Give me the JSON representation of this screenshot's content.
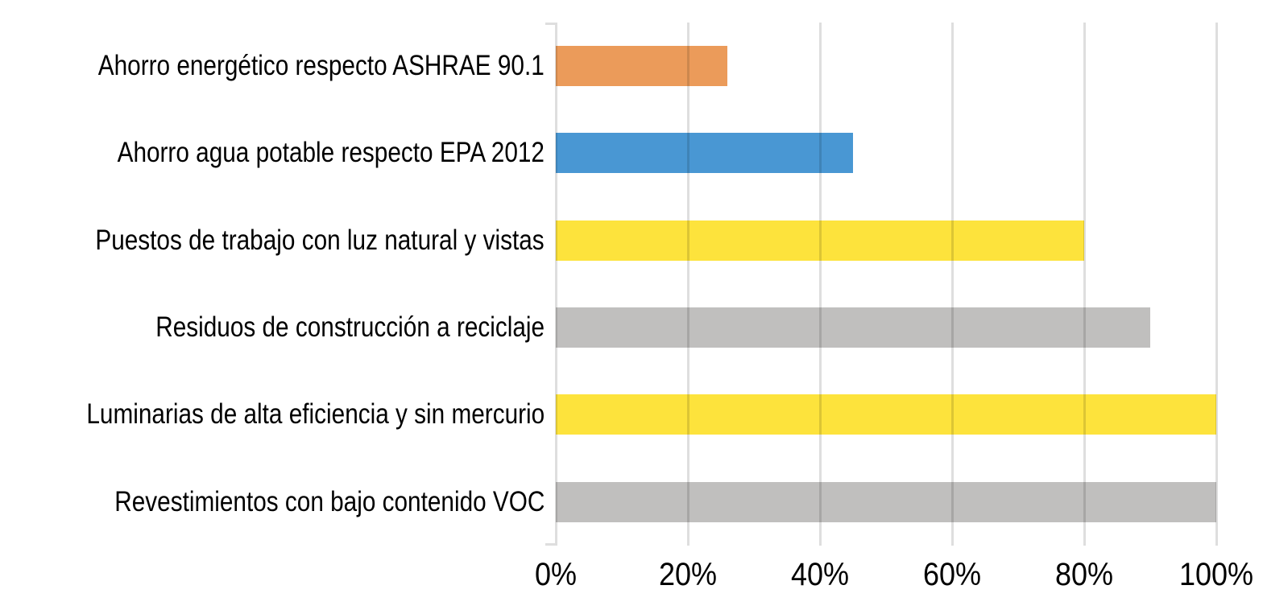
{
  "chart_data": {
    "type": "bar",
    "orientation": "horizontal",
    "title": "",
    "categories": [
      "Ahorro energético respecto ASHRAE 90.1",
      "Ahorro agua potable respecto EPA 2012",
      "Puestos de trabajo con luz natural y vistas",
      "Residuos de construcción a reciclaje",
      "Luminarias de alta eficiencia y sin mercurio",
      "Revestimientos con bajo contenido VOC"
    ],
    "values": [
      26,
      45,
      80,
      90,
      100,
      100
    ],
    "value_unit": "%",
    "bar_colors": [
      "#EB9B5A",
      "#4997D3",
      "#FDE33C",
      "#C0BFBE",
      "#FDE33C",
      "#C0BFBE"
    ],
    "xlabel": "",
    "ylabel": "",
    "xlim": [
      0,
      100
    ],
    "x_tick_values": [
      0,
      20,
      40,
      60,
      80,
      100
    ],
    "x_tick_labels": [
      "0%",
      "20%",
      "40%",
      "60%",
      "80%",
      "100%"
    ],
    "grid": "vertical",
    "gridline_color": "#D9D9D9",
    "background_color": "#FFFFFF",
    "text_color": "#000000",
    "legend": "none"
  }
}
